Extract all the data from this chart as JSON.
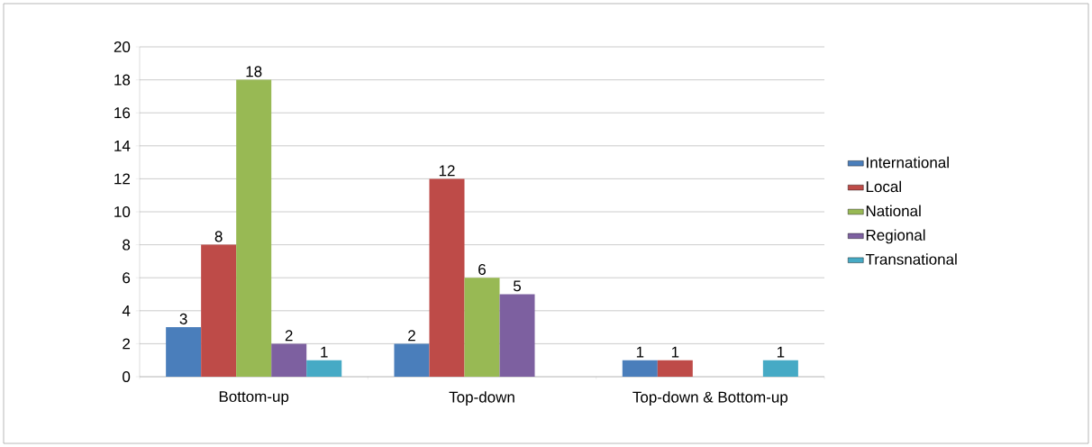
{
  "chart_data": {
    "type": "bar",
    "categories": [
      "Bottom-up",
      "Top-down",
      "Top-down & Bottom-up"
    ],
    "series": [
      {
        "name": "International",
        "color": "#4a7ebb",
        "values": [
          3,
          2,
          1
        ]
      },
      {
        "name": "Local",
        "color": "#be4b48",
        "values": [
          8,
          12,
          1
        ]
      },
      {
        "name": "National",
        "color": "#98b954",
        "values": [
          18,
          6,
          null
        ]
      },
      {
        "name": "Regional",
        "color": "#7d60a0",
        "values": [
          2,
          5,
          null
        ]
      },
      {
        "name": "Transnational",
        "color": "#46aac5",
        "values": [
          1,
          null,
          1
        ]
      }
    ],
    "ylim": [
      0,
      20
    ],
    "yticks": [
      0,
      2,
      4,
      6,
      8,
      10,
      12,
      14,
      16,
      18,
      20
    ],
    "grid": "y",
    "legend": "right",
    "data_labels": true
  }
}
